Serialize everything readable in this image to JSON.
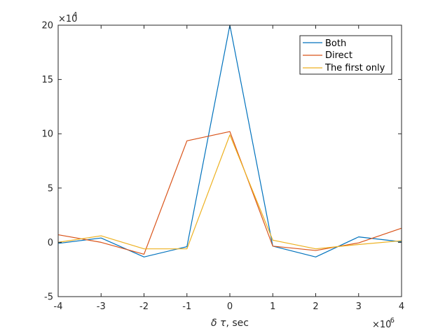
{
  "chart_data": {
    "type": "line",
    "title": "",
    "xlabel_greek": "δ τ",
    "xlabel_text": ", sec",
    "ylabel": "",
    "x_exponent_base": "×10",
    "x_exponent_power": "-6",
    "y_exponent_base": "×10",
    "y_exponent_power": "4",
    "xlim": [
      -4,
      4
    ],
    "ylim": [
      -5,
      20
    ],
    "xticks": [
      -4,
      -3,
      -2,
      -1,
      0,
      1,
      2,
      3,
      4
    ],
    "yticks": [
      -5,
      0,
      5,
      10,
      15,
      20
    ],
    "xtick_labels": [
      "-4",
      "-3",
      "-2",
      "-1",
      "0",
      "1",
      "2",
      "3",
      "4"
    ],
    "ytick_labels": [
      "-5",
      "0",
      "5",
      "10",
      "15",
      "20"
    ],
    "x": [
      -4,
      -3,
      -2,
      -1,
      0,
      1,
      2,
      3,
      4
    ],
    "series": [
      {
        "name": "Both",
        "color": "#0072BD",
        "values": [
          -0.1,
          0.4,
          -1.35,
          -0.4,
          20.0,
          -0.35,
          -1.35,
          0.5,
          0.05
        ]
      },
      {
        "name": "Direct",
        "color": "#D95319",
        "values": [
          0.7,
          0.0,
          -1.1,
          9.35,
          10.2,
          -0.35,
          -0.75,
          -0.05,
          1.3
        ]
      },
      {
        "name": "The first only",
        "color": "#EDB120",
        "values": [
          0.0,
          0.6,
          -0.6,
          -0.6,
          9.9,
          0.2,
          -0.6,
          -0.2,
          0.15
        ]
      }
    ],
    "grid": false,
    "legend_position": "top-right"
  }
}
